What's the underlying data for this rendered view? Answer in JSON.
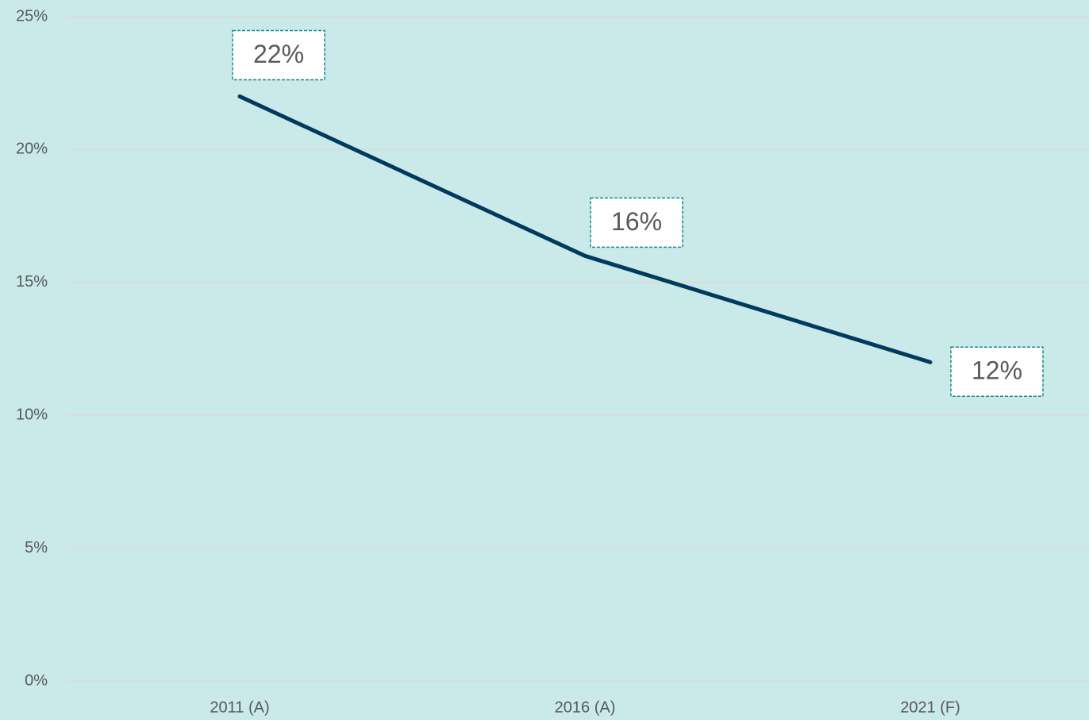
{
  "chart_data": {
    "type": "line",
    "categories": [
      "2011 (A)",
      "2016 (A)",
      "2021 (F)"
    ],
    "series": [
      {
        "name": null,
        "color": "#003a5c",
        "values": [
          22,
          16,
          12
        ],
        "value_labels": [
          "22%",
          "16%",
          "12%"
        ]
      }
    ],
    "ylim": [
      0,
      25
    ],
    "yticks": [
      {
        "value": 0,
        "label": "0%"
      },
      {
        "value": 5,
        "label": "5%"
      },
      {
        "value": 10,
        "label": "10%"
      },
      {
        "value": 15,
        "label": "15%"
      },
      {
        "value": 20,
        "label": "20%"
      },
      {
        "value": 25,
        "label": "25%"
      }
    ],
    "grid": true,
    "background": "#cae9e9"
  }
}
